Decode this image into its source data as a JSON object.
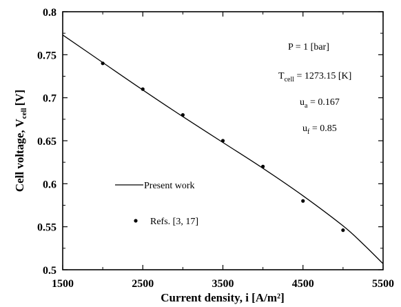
{
  "chart_data": {
    "type": "line",
    "xlabel": "Current density, i [A/m²]",
    "ylabel": "Cell voltage, V",
    "ylabel_sub": "cell",
    "ylabel_unit": "[V]",
    "xlim": [
      1500,
      5500
    ],
    "ylim": [
      0.5,
      0.8
    ],
    "x_ticks": [
      "1500",
      "2500",
      "3500",
      "4500",
      "5500"
    ],
    "y_ticks": [
      "0.5",
      "0.55",
      "0.6",
      "0.65",
      "0.7",
      "0.75",
      "0.8"
    ],
    "series": [
      {
        "name": "Present work",
        "type": "line",
        "x": [
          1500,
          2000,
          2500,
          3000,
          3500,
          4000,
          4500,
          5000,
          5250,
          5500
        ],
        "y": [
          0.773,
          0.741,
          0.709,
          0.678,
          0.648,
          0.618,
          0.586,
          0.551,
          0.53,
          0.507
        ]
      },
      {
        "name": "Refs. [3, 17]",
        "type": "scatter",
        "x": [
          2000,
          2500,
          3000,
          3500,
          4000,
          4500,
          5000
        ],
        "y": [
          0.74,
          0.71,
          0.68,
          0.65,
          0.62,
          0.58,
          0.546
        ]
      }
    ],
    "annotations": {
      "pressure": "P = 1 [bar]",
      "tcell_main": "T",
      "tcell_sub": "cell",
      "tcell_value": " = 1273.15 [K]",
      "ua_main": "u",
      "ua_sub": "a",
      "ua_value": " = 0.167",
      "uf_main": "u",
      "uf_sub": "f",
      "uf_value": " = 0.85"
    },
    "legend_placement": "lower-left",
    "grid": false
  }
}
